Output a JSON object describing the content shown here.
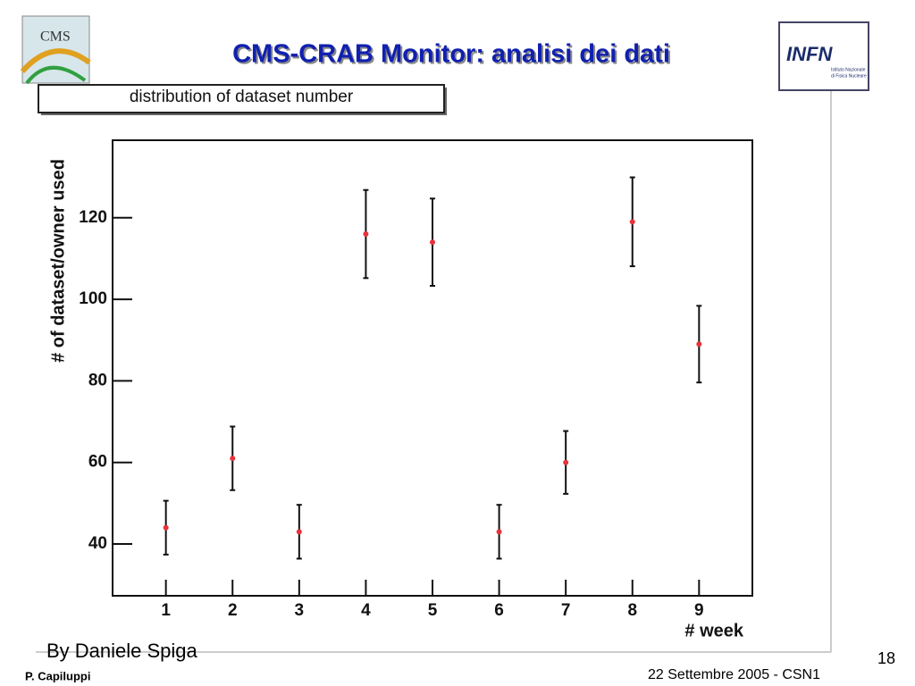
{
  "slide": {
    "title": "CMS-CRAB Monitor: analisi dei dati",
    "author": "By Daniele Spiga",
    "presenter": "P. Capiluppi",
    "footer": "22 Settembre 2005 - CSN1",
    "page": "18",
    "logo_left": "CMS",
    "logo_right": "INFN",
    "logo_right_sub": [
      "Istituto Nazionale",
      "di Fisica Nucleare"
    ]
  },
  "chart_data": {
    "type": "errorbar",
    "title": "distribution of dataset number",
    "x_label": "# week",
    "y_label": "# of dataset/owner used",
    "x": [
      1,
      2,
      3,
      4,
      5,
      6,
      7,
      8,
      9
    ],
    "values": [
      44,
      61,
      43,
      116,
      114,
      43,
      60,
      119,
      89
    ],
    "errors": [
      6.6,
      7.8,
      6.6,
      10.8,
      10.7,
      6.6,
      7.7,
      10.9,
      9.4
    ],
    "color": "#e8323a",
    "xlim": [
      0.2,
      9.8
    ],
    "xticks": [
      1,
      2,
      3,
      4,
      5,
      6,
      7,
      8,
      9
    ],
    "ylim": [
      27.3,
      139
    ],
    "yticks": [
      40,
      60,
      80,
      100,
      120
    ]
  }
}
